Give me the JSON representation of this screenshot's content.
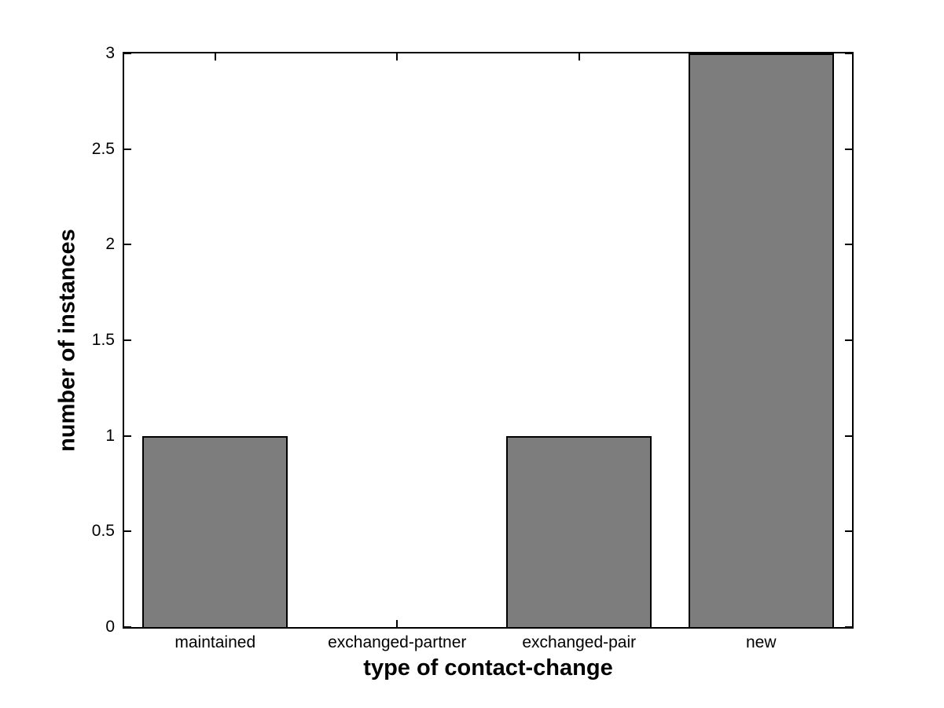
{
  "chart_data": {
    "type": "bar",
    "title": "",
    "xlabel": "type of contact-change",
    "ylabel": "number of instances",
    "categories": [
      "maintained",
      "exchanged-partner",
      "exchanged-pair",
      "new"
    ],
    "values": [
      1,
      0,
      1,
      3
    ],
    "ylim": [
      0,
      3
    ],
    "yticks": [
      0,
      0.5,
      1,
      1.5,
      2,
      2.5,
      3
    ],
    "ytick_labels": [
      "0",
      "0.5",
      "1",
      "1.5",
      "2",
      "2.5",
      "3"
    ],
    "bar_width_fraction": 0.8,
    "grid": false,
    "legend": null,
    "colors": {
      "bar_fill": "#7d7d7d",
      "bar_edge": "#000000",
      "axis": "#000000",
      "background": "#ffffff",
      "text": "#000000"
    }
  }
}
